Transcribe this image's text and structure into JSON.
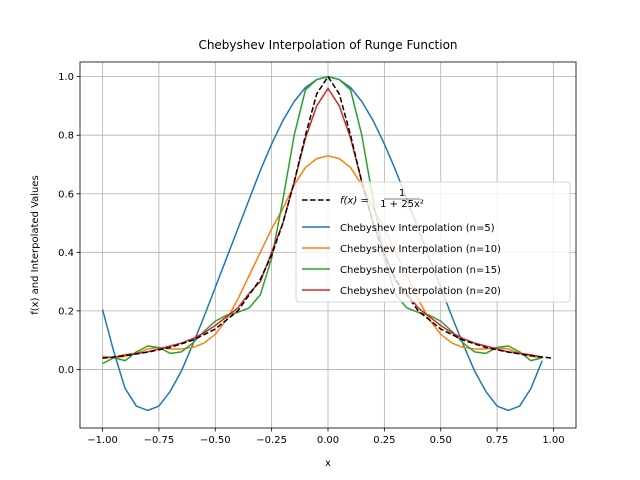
{
  "chart_data": {
    "type": "line",
    "title": "Chebyshev Interpolation of Runge Function",
    "xlabel": "x",
    "ylabel": "f(x) and Interpolated Values",
    "xlim": [
      -1.1,
      1.1
    ],
    "ylim": [
      -0.2,
      1.05
    ],
    "xticks": [
      -1.0,
      -0.75,
      -0.5,
      -0.25,
      0.0,
      0.25,
      0.5,
      0.75,
      1.0
    ],
    "xtick_labels": [
      "−1.00",
      "−0.75",
      "−0.50",
      "−0.25",
      "0.00",
      "0.25",
      "0.50",
      "0.75",
      "1.00"
    ],
    "yticks": [
      0.0,
      0.2,
      0.4,
      0.6,
      0.8,
      1.0
    ],
    "ytick_labels": [
      "0.0",
      "0.2",
      "0.4",
      "0.6",
      "0.8",
      "1.0"
    ],
    "grid": true,
    "legend_position": "center-right",
    "series": [
      {
        "name": "f(x) = 1/(1+25x²)",
        "legend_main": "f(x) = ",
        "legend_num": "1",
        "legend_den": "1 + 25x²",
        "color": "#000000",
        "dashed": true,
        "x": [
          -1.0,
          -0.9,
          -0.8,
          -0.7,
          -0.6,
          -0.5,
          -0.4,
          -0.3,
          -0.25,
          -0.2,
          -0.15,
          -0.1,
          -0.05,
          0.0,
          0.05,
          0.1,
          0.15,
          0.2,
          0.25,
          0.3,
          0.4,
          0.5,
          0.6,
          0.7,
          0.8,
          0.9,
          1.0
        ],
        "y": [
          0.038,
          0.047,
          0.059,
          0.075,
          0.1,
          0.138,
          0.2,
          0.308,
          0.39,
          0.5,
          0.64,
          0.8,
          0.941,
          1.0,
          0.941,
          0.8,
          0.64,
          0.5,
          0.39,
          0.308,
          0.2,
          0.138,
          0.1,
          0.075,
          0.059,
          0.047,
          0.038
        ]
      },
      {
        "name": "Chebyshev Interpolation (n=5)",
        "color": "#1f77b4",
        "dashed": false,
        "x": [
          -1.0,
          -0.95,
          -0.9,
          -0.85,
          -0.8,
          -0.75,
          -0.7,
          -0.65,
          -0.6,
          -0.55,
          -0.5,
          -0.45,
          -0.4,
          -0.35,
          -0.3,
          -0.25,
          -0.2,
          -0.15,
          -0.1,
          -0.05,
          0.0,
          0.05,
          0.1,
          0.15,
          0.2,
          0.25,
          0.3,
          0.35,
          0.4,
          0.45,
          0.5,
          0.55,
          0.6,
          0.65,
          0.7,
          0.75,
          0.8,
          0.85,
          0.9,
          0.95
        ],
        "y": [
          0.205,
          0.06,
          -0.065,
          -0.125,
          -0.14,
          -0.125,
          -0.075,
          -0.005,
          0.085,
          0.18,
          0.28,
          0.38,
          0.48,
          0.58,
          0.68,
          0.77,
          0.85,
          0.915,
          0.963,
          0.99,
          1.0,
          0.99,
          0.963,
          0.915,
          0.85,
          0.77,
          0.68,
          0.58,
          0.48,
          0.38,
          0.28,
          0.18,
          0.085,
          -0.005,
          -0.075,
          -0.125,
          -0.14,
          -0.125,
          -0.065,
          0.03
        ]
      },
      {
        "name": "Chebyshev Interpolation (n=10)",
        "color": "#ff7f0e",
        "dashed": false,
        "x": [
          -1.0,
          -0.95,
          -0.9,
          -0.85,
          -0.8,
          -0.75,
          -0.7,
          -0.65,
          -0.6,
          -0.55,
          -0.5,
          -0.45,
          -0.4,
          -0.35,
          -0.3,
          -0.25,
          -0.2,
          -0.15,
          -0.1,
          -0.05,
          0.0,
          0.05,
          0.1,
          0.15,
          0.2,
          0.25,
          0.3,
          0.35,
          0.4,
          0.45,
          0.5,
          0.55,
          0.6,
          0.65,
          0.7,
          0.75,
          0.8,
          0.85,
          0.9,
          0.95
        ],
        "y": [
          0.045,
          0.04,
          0.045,
          0.055,
          0.07,
          0.075,
          0.07,
          0.07,
          0.075,
          0.09,
          0.12,
          0.17,
          0.24,
          0.32,
          0.4,
          0.48,
          0.55,
          0.63,
          0.69,
          0.72,
          0.73,
          0.72,
          0.69,
          0.63,
          0.55,
          0.48,
          0.4,
          0.32,
          0.24,
          0.17,
          0.12,
          0.09,
          0.075,
          0.07,
          0.07,
          0.075,
          0.07,
          0.055,
          0.045,
          0.04
        ]
      },
      {
        "name": "Chebyshev Interpolation (n=15)",
        "color": "#2ca02c",
        "dashed": false,
        "x": [
          -1.0,
          -0.95,
          -0.9,
          -0.85,
          -0.8,
          -0.75,
          -0.7,
          -0.65,
          -0.6,
          -0.55,
          -0.5,
          -0.45,
          -0.4,
          -0.35,
          -0.3,
          -0.25,
          -0.2,
          -0.15,
          -0.1,
          -0.05,
          0.0,
          0.05,
          0.1,
          0.15,
          0.2,
          0.25,
          0.3,
          0.35,
          0.4,
          0.45,
          0.5,
          0.55,
          0.6,
          0.65,
          0.7,
          0.75,
          0.8,
          0.85,
          0.9,
          0.95
        ],
        "y": [
          0.02,
          0.04,
          0.03,
          0.06,
          0.08,
          0.075,
          0.055,
          0.06,
          0.09,
          0.13,
          0.165,
          0.185,
          0.195,
          0.21,
          0.255,
          0.38,
          0.58,
          0.8,
          0.955,
          0.99,
          1.0,
          0.99,
          0.955,
          0.8,
          0.58,
          0.38,
          0.255,
          0.21,
          0.195,
          0.185,
          0.165,
          0.13,
          0.09,
          0.06,
          0.055,
          0.075,
          0.08,
          0.06,
          0.03,
          0.04
        ]
      },
      {
        "name": "Chebyshev Interpolation (n=20)",
        "color": "#d62728",
        "dashed": false,
        "x": [
          -1.0,
          -0.95,
          -0.9,
          -0.85,
          -0.8,
          -0.75,
          -0.7,
          -0.65,
          -0.6,
          -0.55,
          -0.5,
          -0.45,
          -0.4,
          -0.35,
          -0.3,
          -0.25,
          -0.2,
          -0.15,
          -0.1,
          -0.05,
          0.0,
          0.05,
          0.1,
          0.15,
          0.2,
          0.25,
          0.3,
          0.35,
          0.4,
          0.45,
          0.5,
          0.55,
          0.6,
          0.65,
          0.7,
          0.75,
          0.8,
          0.85,
          0.9,
          0.95
        ],
        "y": [
          0.04,
          0.042,
          0.05,
          0.055,
          0.06,
          0.07,
          0.08,
          0.09,
          0.105,
          0.125,
          0.15,
          0.18,
          0.21,
          0.26,
          0.3,
          0.4,
          0.5,
          0.64,
          0.79,
          0.9,
          0.96,
          0.9,
          0.79,
          0.64,
          0.5,
          0.4,
          0.3,
          0.26,
          0.21,
          0.18,
          0.15,
          0.125,
          0.105,
          0.09,
          0.08,
          0.07,
          0.06,
          0.055,
          0.05,
          0.042
        ]
      }
    ]
  }
}
